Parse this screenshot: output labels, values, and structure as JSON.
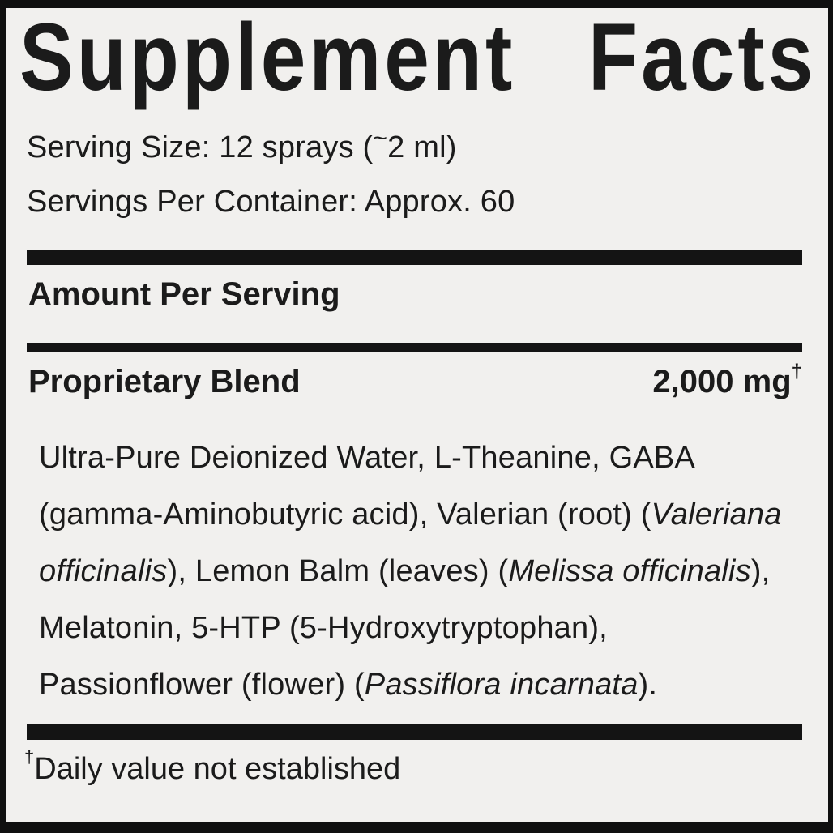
{
  "label": {
    "title": "Supplement Facts",
    "serving_size": {
      "prefix": "Serving Size: 12 sprays (",
      "approx_symbol": "~",
      "suffix": "2 ml)"
    },
    "servings_per_container": "Servings Per Container: Approx. 60",
    "amount_per_serving": "Amount Per Serving",
    "blend": {
      "name": "Proprietary Blend",
      "amount": "2,000 mg",
      "footnote_symbol": "†"
    },
    "ingredients": {
      "segments": [
        {
          "text": "Ultra-Pure Deionized Water, L-Theanine, GABA (gamma-Aminobutyric acid), Valerian (root) (",
          "italic": false
        },
        {
          "text": "Valeriana officinalis",
          "italic": true
        },
        {
          "text": "), Lemon Balm (leaves) (",
          "italic": false
        },
        {
          "text": "Melissa officinalis",
          "italic": true
        },
        {
          "text": "), Melatonin, 5-HTP (5-Hydroxytryptophan), Passionflower (flower) (",
          "italic": false
        },
        {
          "text": "Passiflora incarnata",
          "italic": true
        },
        {
          "text": ").",
          "italic": false
        }
      ]
    },
    "footnote": {
      "symbol": "†",
      "text": "Daily value not established"
    },
    "colors": {
      "background": "#f1f0ee",
      "text": "#1b1b1b",
      "rule": "#141414"
    }
  }
}
